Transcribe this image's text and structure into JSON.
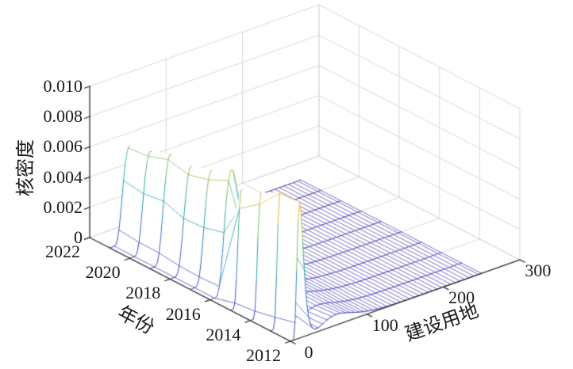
{
  "chart_data": {
    "type": "surface",
    "title": "",
    "axes": {
      "z_label": "核密度",
      "x_label": "年份",
      "y_label": "建设用地",
      "z_ticks": [
        "0",
        "0.002",
        "0.004",
        "0.006",
        "0.008",
        "0.010"
      ],
      "z_tick_values": [
        0,
        0.002,
        0.004,
        0.006,
        0.008,
        0.01
      ],
      "x_ticks": [
        2022,
        2020,
        2018,
        2016,
        2014,
        2012
      ],
      "y_ticks": [
        0,
        100,
        200,
        300
      ],
      "x_range": [
        2012,
        2022
      ],
      "y_range": [
        0,
        300
      ],
      "z_range": [
        0,
        0.01
      ],
      "grid": true
    },
    "series": [
      {
        "year": 2012,
        "peak_pos": 12,
        "peak_height": 0.009,
        "spread": 0.34,
        "bump_pos": 60,
        "bump_height": 0.0007
      },
      {
        "year": 2013,
        "peak_pos": 13,
        "peak_height": 0.0091,
        "spread": 0.35,
        "bump_pos": 62,
        "bump_height": 0.0006
      },
      {
        "year": 2014,
        "peak_pos": 14,
        "peak_height": 0.0082,
        "spread": 0.36,
        "bump_pos": 65,
        "bump_height": 0.0006
      },
      {
        "year": 2015,
        "peak_pos": 15,
        "peak_height": 0.0078,
        "spread": 0.37,
        "bump_pos": 68,
        "bump_height": 0.0005
      },
      {
        "year": 2016,
        "peak_pos": 28,
        "peak_height": 0.0081,
        "spread": 0.38,
        "bump_pos": 78,
        "bump_height": 0.0003
      },
      {
        "year": 2017,
        "peak_pos": 28,
        "peak_height": 0.0074,
        "spread": 0.38,
        "bump_pos": 78,
        "bump_height": 0.0003
      },
      {
        "year": 2018,
        "peak_pos": 28,
        "peak_height": 0.007,
        "spread": 0.39,
        "bump_pos": 80,
        "bump_height": 0.0002
      },
      {
        "year": 2019,
        "peak_pos": 27,
        "peak_height": 0.0071,
        "spread": 0.39,
        "bump_pos": 80,
        "bump_height": 0.0002
      },
      {
        "year": 2020,
        "peak_pos": 27,
        "peak_height": 0.0066,
        "spread": 0.4,
        "bump_pos": 82,
        "bump_height": 0.0002
      },
      {
        "year": 2021,
        "peak_pos": 26,
        "peak_height": 0.0063,
        "spread": 0.4,
        "bump_pos": 82,
        "bump_height": 0.0002
      }
    ],
    "surface": {
      "land_data_max": 250,
      "land_grid_step": 2,
      "hatch_line_step": 6,
      "color_max": 0.0091
    },
    "colormap_stops": [
      {
        "t": 0.0,
        "c": "#4a3fb5"
      },
      {
        "t": 0.1,
        "c": "#4356cf"
      },
      {
        "t": 0.2,
        "c": "#3b6fdd"
      },
      {
        "t": 0.3,
        "c": "#2e87d2"
      },
      {
        "t": 0.4,
        "c": "#1d9dc3"
      },
      {
        "t": 0.5,
        "c": "#25b2a6"
      },
      {
        "t": 0.6,
        "c": "#4abb87"
      },
      {
        "t": 0.7,
        "c": "#82c06a"
      },
      {
        "t": 0.8,
        "c": "#bcbe4f"
      },
      {
        "t": 0.9,
        "c": "#edb93f"
      },
      {
        "t": 1.0,
        "c": "#f6ca38"
      }
    ],
    "colors": {
      "grid": "#d9d9d9",
      "axis": "#2c2c2c",
      "tick_text": "#1a1a1a",
      "background": "#ffffff",
      "face": "#ffffff"
    }
  }
}
